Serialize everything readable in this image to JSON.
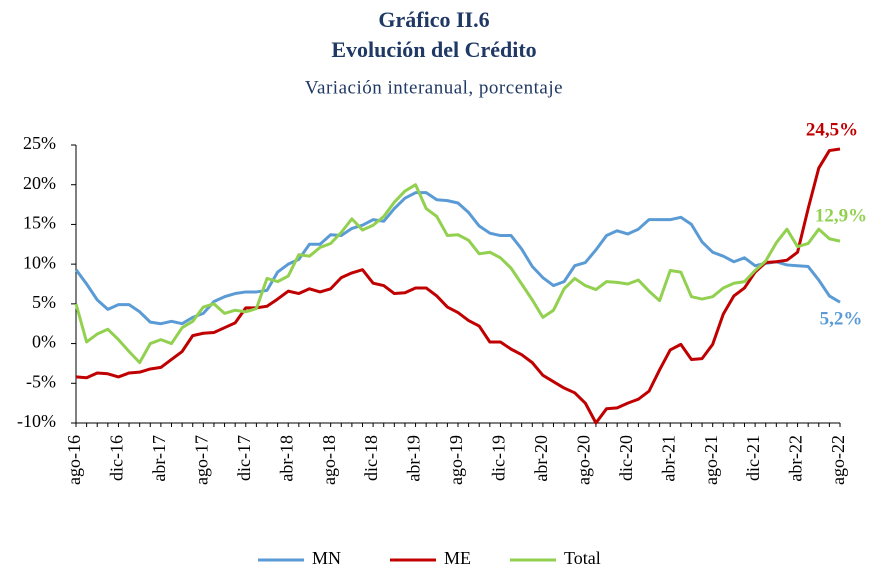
{
  "chart_data": {
    "type": "line",
    "title": "Gráfico II.6",
    "subtitle": "Evolución del Crédito",
    "caption": "Variación interanual, porcentaje",
    "categories": [
      "ago-16",
      null,
      null,
      null,
      "dic-16",
      null,
      null,
      null,
      "abr-17",
      null,
      null,
      null,
      "ago-17",
      null,
      null,
      null,
      "dic-17",
      null,
      null,
      null,
      "abr-18",
      null,
      null,
      null,
      "ago-18",
      null,
      null,
      null,
      "dic-18",
      null,
      null,
      null,
      "abr-19",
      null,
      null,
      null,
      "ago-19",
      null,
      null,
      null,
      "dic-19",
      null,
      null,
      null,
      "abr-20",
      null,
      null,
      null,
      "ago-20",
      null,
      null,
      null,
      "dic-20",
      null,
      null,
      null,
      "abr-21",
      null,
      null,
      null,
      "ago-21",
      null,
      null,
      null,
      "dic-21",
      null,
      null,
      null,
      "abr-22",
      null,
      null,
      null,
      "ago-22"
    ],
    "series": [
      {
        "name": "MN",
        "color": "#5b9bd5",
        "values": [
          9.3,
          7.5,
          5.5,
          4.3,
          4.9,
          4.9,
          4.0,
          2.7,
          2.5,
          2.8,
          2.5,
          3.3,
          3.8,
          5.3,
          5.9,
          6.3,
          6.5,
          6.5,
          6.7,
          9.0,
          10.0,
          10.6,
          12.5,
          12.5,
          13.7,
          13.6,
          14.5,
          14.9,
          15.6,
          15.4,
          17.0,
          18.3,
          19.0,
          19.0,
          18.1,
          18.0,
          17.7,
          16.5,
          14.8,
          13.9,
          13.6,
          13.6,
          11.9,
          9.7,
          8.3,
          7.3,
          7.8,
          9.8,
          10.2,
          11.8,
          13.6,
          14.2,
          13.8,
          14.4,
          15.6,
          15.6,
          15.6,
          15.9,
          15.0,
          12.8,
          11.5,
          11.0,
          10.3,
          10.8,
          9.8,
          10.1,
          10.3,
          9.9,
          9.8,
          9.7,
          8.0,
          6.0,
          5.2
        ],
        "value_labels": [
          null,
          null,
          null,
          null,
          null,
          null,
          null,
          null,
          null,
          null,
          null,
          null,
          null,
          null,
          null,
          null,
          null,
          null,
          null,
          null,
          null,
          null,
          null,
          null,
          null,
          null,
          null,
          null,
          null,
          null,
          null,
          null,
          null,
          null,
          null,
          null,
          null,
          null,
          null,
          null,
          null,
          null,
          null,
          null,
          null,
          null,
          null,
          null,
          null,
          null,
          null,
          null,
          null,
          null,
          null,
          null,
          null,
          null,
          null,
          null,
          null,
          null,
          null,
          null,
          null,
          null,
          null,
          null,
          null,
          null,
          null,
          null,
          "5,2%"
        ]
      },
      {
        "name": "ME",
        "color": "#c00000",
        "values": [
          -4.2,
          -4.3,
          -3.7,
          -3.8,
          -4.2,
          -3.7,
          -3.6,
          -3.2,
          -3.0,
          -2.0,
          -1.0,
          1.0,
          1.3,
          1.4,
          2.0,
          2.6,
          4.5,
          4.5,
          4.7,
          5.6,
          6.6,
          6.3,
          6.9,
          6.5,
          6.9,
          8.3,
          8.9,
          9.3,
          7.6,
          7.3,
          6.3,
          6.4,
          7.0,
          7.0,
          6.0,
          4.6,
          3.9,
          2.9,
          2.2,
          0.2,
          0.2,
          -0.7,
          -1.4,
          -2.4,
          -4.0,
          -4.8,
          -5.6,
          -6.2,
          -7.5,
          -10.0,
          -8.2,
          -8.1,
          -7.5,
          -7.0,
          -6.0,
          -3.3,
          -0.8,
          -0.1,
          -2.0,
          -1.9,
          -0.1,
          3.7,
          6.0,
          7.0,
          9.0,
          10.2,
          10.3,
          10.5,
          11.5,
          17.0,
          22.1,
          24.3,
          24.5
        ],
        "value_labels": [
          null,
          null,
          null,
          null,
          null,
          null,
          null,
          null,
          null,
          null,
          null,
          null,
          null,
          null,
          null,
          null,
          null,
          null,
          null,
          null,
          null,
          null,
          null,
          null,
          null,
          null,
          null,
          null,
          null,
          null,
          null,
          null,
          null,
          null,
          null,
          null,
          null,
          null,
          null,
          null,
          null,
          null,
          null,
          null,
          null,
          null,
          null,
          null,
          null,
          null,
          null,
          null,
          null,
          null,
          null,
          null,
          null,
          null,
          null,
          null,
          null,
          null,
          null,
          null,
          null,
          null,
          null,
          null,
          null,
          null,
          null,
          null,
          "24,5%"
        ]
      },
      {
        "name": "Total",
        "color": "#92d050",
        "values": [
          5.0,
          0.2,
          1.2,
          1.8,
          0.5,
          -1.0,
          -2.4,
          0.0,
          0.5,
          0.0,
          2.0,
          2.8,
          4.6,
          5.0,
          3.8,
          4.2,
          4.0,
          4.4,
          8.2,
          7.8,
          8.5,
          11.2,
          11.0,
          12.1,
          12.6,
          14.0,
          15.7,
          14.3,
          14.9,
          16.0,
          17.8,
          19.2,
          20.0,
          17.0,
          16.0,
          13.6,
          13.7,
          13.0,
          11.3,
          11.5,
          10.8,
          9.5,
          7.5,
          5.5,
          3.3,
          4.2,
          6.9,
          8.2,
          7.3,
          6.8,
          7.8,
          7.7,
          7.5,
          8.0,
          6.6,
          5.4,
          9.2,
          9.0,
          5.9,
          5.6,
          5.9,
          7.0,
          7.6,
          7.8,
          9.2,
          10.4,
          12.7,
          14.4,
          12.2,
          12.6,
          14.4,
          13.2,
          12.9
        ],
        "value_labels": [
          null,
          null,
          null,
          null,
          null,
          null,
          null,
          null,
          null,
          null,
          null,
          null,
          null,
          null,
          null,
          null,
          null,
          null,
          null,
          null,
          null,
          null,
          null,
          null,
          null,
          null,
          null,
          null,
          null,
          null,
          null,
          null,
          null,
          null,
          null,
          null,
          null,
          null,
          null,
          null,
          null,
          null,
          null,
          null,
          null,
          null,
          null,
          null,
          null,
          null,
          null,
          null,
          null,
          null,
          null,
          null,
          null,
          null,
          null,
          null,
          null,
          null,
          null,
          null,
          null,
          null,
          null,
          null,
          null,
          null,
          null,
          null,
          "12,9%"
        ]
      }
    ],
    "ylim": [
      -10,
      25
    ],
    "yticks": [
      {
        "value": -10,
        "label": "-10%"
      },
      {
        "value": -5,
        "label": "-5%"
      },
      {
        "value": 0,
        "label": "0%"
      },
      {
        "value": 5,
        "label": "5%"
      },
      {
        "value": 10,
        "label": "10%"
      },
      {
        "value": 15,
        "label": "15%"
      },
      {
        "value": 20,
        "label": "20%"
      },
      {
        "value": 25,
        "label": "25%"
      }
    ],
    "grid": false,
    "legend": "bottom"
  }
}
